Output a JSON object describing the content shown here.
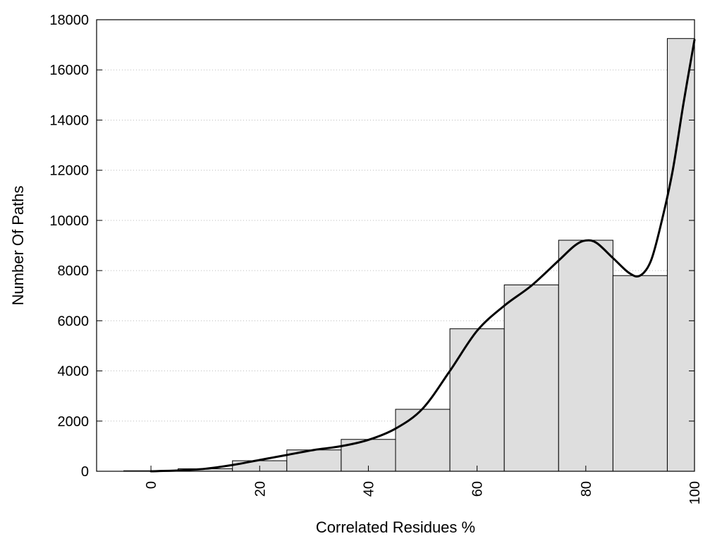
{
  "chart_data": {
    "type": "bar",
    "title": "",
    "xlabel": "Correlated Residues %",
    "ylabel": "Number Of Paths",
    "xlim": [
      -10,
      100
    ],
    "ylim": [
      0,
      18000
    ],
    "x_ticks": [
      "0",
      "20",
      "40",
      "60",
      "80",
      "100"
    ],
    "y_ticks": [
      "0",
      "2000",
      "4000",
      "6000",
      "8000",
      "10000",
      "12000",
      "14000",
      "16000",
      "18000"
    ],
    "grid": "horizontal-dotted",
    "legend": "none",
    "bar_color": "#dedede",
    "bars": [
      {
        "x": 0,
        "value": 20
      },
      {
        "x": 10,
        "value": 100
      },
      {
        "x": 20,
        "value": 420
      },
      {
        "x": 30,
        "value": 850
      },
      {
        "x": 40,
        "value": 1270
      },
      {
        "x": 50,
        "value": 2470
      },
      {
        "x": 60,
        "value": 5680
      },
      {
        "x": 70,
        "value": 7430
      },
      {
        "x": 80,
        "value": 9210
      },
      {
        "x": 90,
        "value": 7800
      },
      {
        "x": 100,
        "value": 17250
      }
    ],
    "curve": {
      "x": [
        0,
        5,
        10,
        15,
        20,
        25,
        30,
        35,
        40,
        45,
        50,
        55,
        60,
        65,
        70,
        75,
        78,
        80,
        82,
        85,
        88,
        90,
        92,
        94,
        96,
        98,
        100
      ],
      "y": [
        0,
        30,
        100,
        250,
        450,
        650,
        850,
        1000,
        1250,
        1700,
        2500,
        4000,
        5600,
        6600,
        7400,
        8400,
        9000,
        9200,
        9100,
        8500,
        7900,
        7800,
        8400,
        10000,
        12000,
        14700,
        17200
      ]
    }
  }
}
